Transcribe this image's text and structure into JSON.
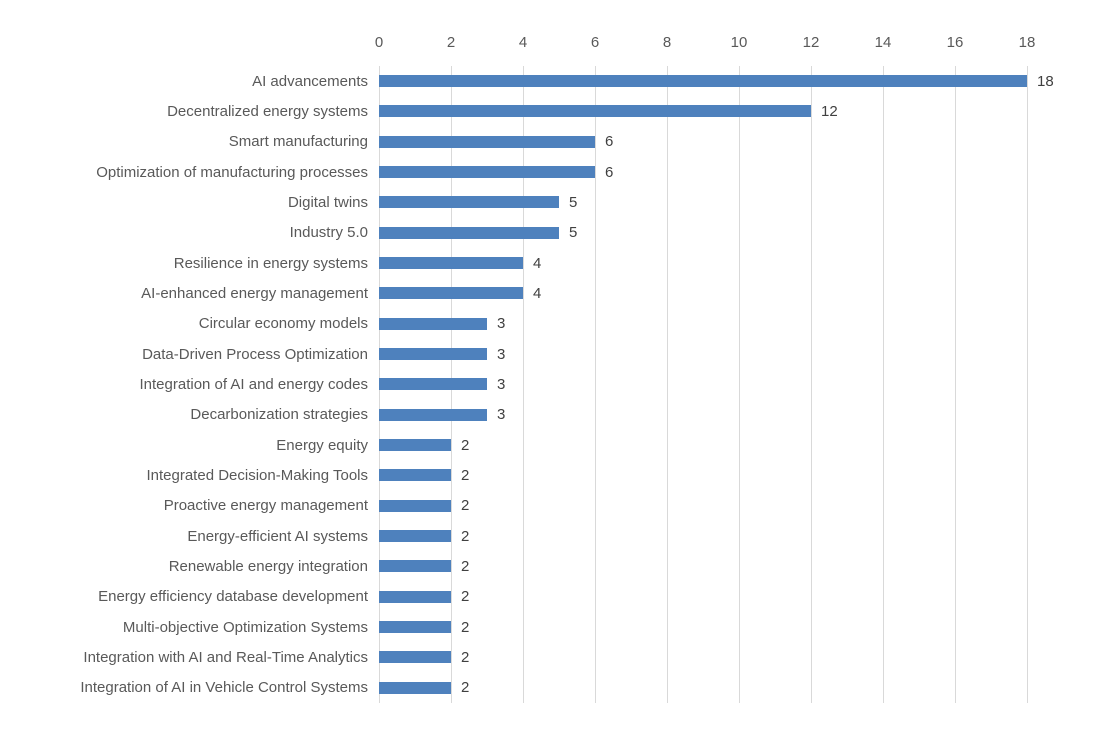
{
  "chart_data": {
    "type": "bar",
    "orientation": "horizontal",
    "title": "",
    "xlabel": "",
    "ylabel": "",
    "categories": [
      "AI advancements",
      "Decentralized energy systems",
      "Smart manufacturing",
      "Optimization of manufacturing processes",
      "Digital twins",
      "Industry 5.0",
      "Resilience in energy systems",
      "AI-enhanced energy management",
      "Circular economy models",
      "Data-Driven Process Optimization",
      "Integration of AI and energy codes",
      "Decarbonization strategies",
      "Energy equity",
      "Integrated Decision-Making Tools",
      "Proactive energy management",
      "Energy-efficient AI systems",
      "Renewable energy integration",
      "Energy efficiency database development",
      "Multi-objective Optimization Systems",
      "Integration with AI and Real-Time Analytics",
      "Integration of AI in Vehicle Control Systems"
    ],
    "values": [
      18,
      12,
      6,
      6,
      5,
      5,
      4,
      4,
      3,
      3,
      3,
      3,
      2,
      2,
      2,
      2,
      2,
      2,
      2,
      2,
      2
    ],
    "data_labels": [
      "18",
      "12",
      "6",
      "6",
      "5",
      "5",
      "4",
      "4",
      "3",
      "3",
      "3",
      "3",
      "2",
      "2",
      "2",
      "2",
      "2",
      "2",
      "2",
      "2",
      "2"
    ],
    "x_ticks": [
      0,
      2,
      4,
      6,
      8,
      10,
      12,
      14,
      16,
      18
    ],
    "xlim": [
      0,
      18
    ],
    "axis_position": "top",
    "grid": "vertical",
    "legend": "none",
    "bar_color": "#4e81bd",
    "gridline_color": "#d9d9d9",
    "category_label_color": "#595959",
    "tick_label_color": "#595959",
    "value_label_color": "#404040"
  }
}
